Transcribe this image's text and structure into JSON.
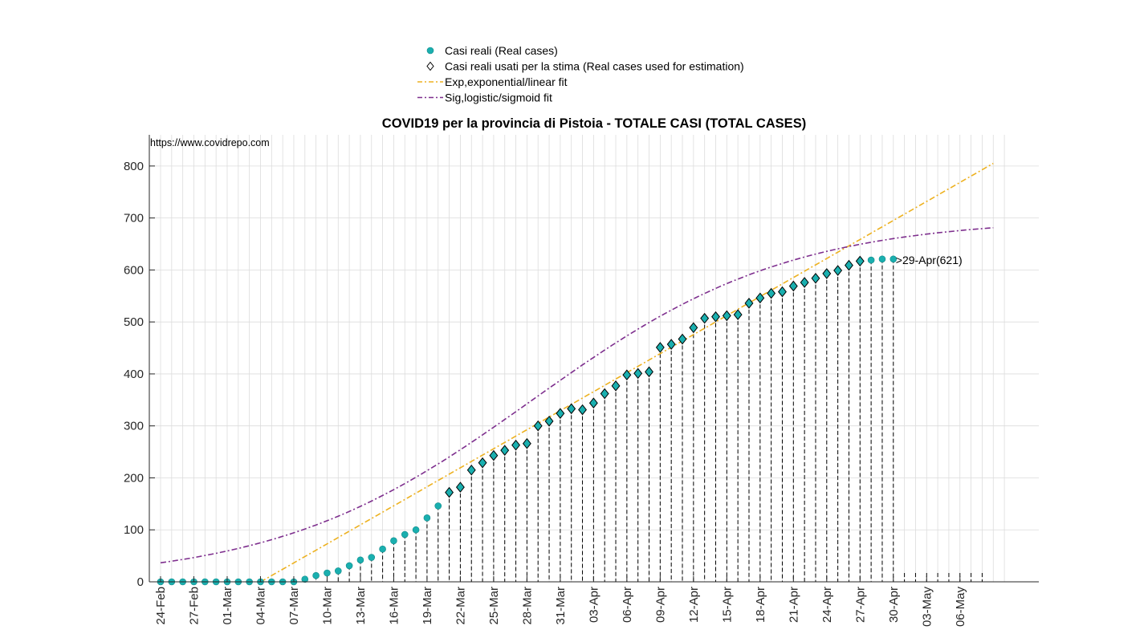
{
  "chart_data": {
    "type": "scatter",
    "title": "COVID19 per la provincia di Pistoia - TOTALE CASI (TOTAL CASES)",
    "watermark": "https://www.covidrepo.com",
    "xlabel": "",
    "ylabel": "",
    "ylim": [
      0,
      860
    ],
    "yticks": [
      0,
      100,
      200,
      300,
      400,
      500,
      600,
      700,
      800
    ],
    "xlim_days": [
      -0.3,
      79
    ],
    "start_date": "24-Feb",
    "xtick_labels": [
      {
        "day": 0,
        "label": "24-Feb"
      },
      {
        "day": 3,
        "label": "27-Feb"
      },
      {
        "day": 6,
        "label": "01-Mar"
      },
      {
        "day": 9,
        "label": "04-Mar"
      },
      {
        "day": 12,
        "label": "07-Mar"
      },
      {
        "day": 15,
        "label": "10-Mar"
      },
      {
        "day": 18,
        "label": "13-Mar"
      },
      {
        "day": 21,
        "label": "16-Mar"
      },
      {
        "day": 24,
        "label": "19-Mar"
      },
      {
        "day": 27,
        "label": "22-Mar"
      },
      {
        "day": 30,
        "label": "25-Mar"
      },
      {
        "day": 33,
        "label": "28-Mar"
      },
      {
        "day": 36,
        "label": "31-Mar"
      },
      {
        "day": 39,
        "label": "03-Apr"
      },
      {
        "day": 42,
        "label": "06-Apr"
      },
      {
        "day": 45,
        "label": "09-Apr"
      },
      {
        "day": 48,
        "label": "12-Apr"
      },
      {
        "day": 51,
        "label": "15-Apr"
      },
      {
        "day": 54,
        "label": "18-Apr"
      },
      {
        "day": 57,
        "label": "21-Apr"
      },
      {
        "day": 60,
        "label": "24-Apr"
      },
      {
        "day": 63,
        "label": "27-Apr"
      },
      {
        "day": 66,
        "label": "30-Apr"
      },
      {
        "day": 69,
        "label": "03-May"
      },
      {
        "day": 72,
        "label": "06-May"
      }
    ],
    "real_cases": [
      0,
      0,
      0,
      0,
      0,
      0,
      0,
      0,
      0,
      0,
      0,
      0,
      0,
      5,
      12,
      17,
      21,
      31,
      42,
      47,
      63,
      79,
      91,
      100,
      123,
      146,
      172,
      182,
      215,
      229,
      243,
      253,
      263,
      266,
      300,
      309,
      324,
      333,
      331,
      344,
      362,
      377,
      398,
      401,
      404,
      451,
      457,
      467,
      489,
      507,
      510,
      512,
      514,
      536,
      546,
      555,
      558,
      569,
      576,
      584,
      593,
      599,
      609,
      617,
      619,
      621,
      621
    ],
    "estimation_start_day": 26,
    "estimation_end_day": 63,
    "annotation": ">29-Apr(621)",
    "exp_fit": {
      "label": "Exp,exponential/linear fit",
      "color": "#EDB120",
      "start_day": 9,
      "end_day": 75,
      "slope": 12.2,
      "intercept": -110
    },
    "sig_fit": {
      "label": "Sig,logistic/sigmoid fit",
      "color": "#7E2F8E",
      "start_day": 0,
      "end_day": 75,
      "K": 700,
      "r": 0.0865,
      "t0": 33.5
    },
    "legend": [
      {
        "label": "Casi reali (Real cases)",
        "marker": "circle",
        "color": "#1AAFAF"
      },
      {
        "label": "Casi reali usati per la stima (Real cases used for estimation)",
        "marker": "diamond",
        "color": "#000000"
      },
      {
        "label": "Exp,exponential/linear fit",
        "marker": "dashdot-line",
        "color": "#EDB120"
      },
      {
        "label": "Sig,logistic/sigmoid fit",
        "marker": "dashdot-line",
        "color": "#7E2F8E"
      }
    ],
    "legend_position": "top-center"
  }
}
